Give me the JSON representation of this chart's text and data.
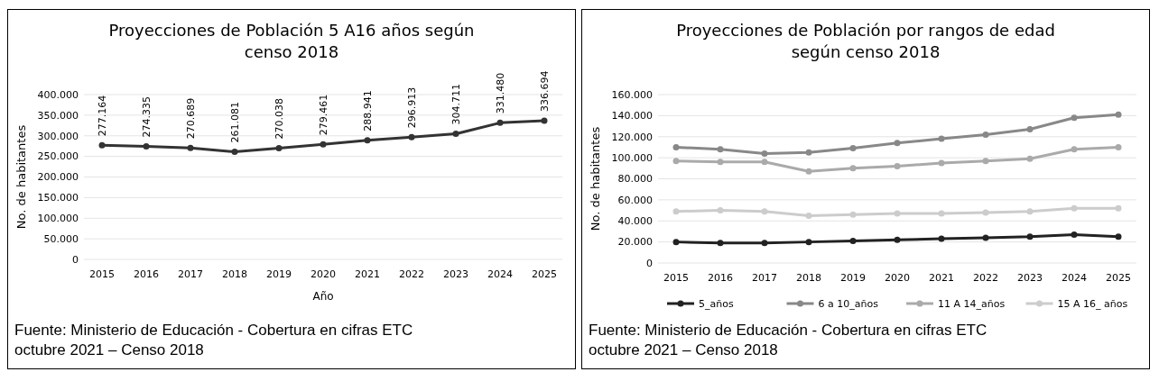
{
  "chart_data": [
    {
      "type": "line",
      "title": "Proyecciones de Población 5 A16 años según censo 2018",
      "xlabel": "Año",
      "ylabel": "No. de habitantes",
      "categories": [
        "2015",
        "2016",
        "2017",
        "2018",
        "2019",
        "2020",
        "2021",
        "2022",
        "2023",
        "2024",
        "2025"
      ],
      "series": [
        {
          "color": "#333333",
          "values": [
            277164,
            274335,
            270689,
            261081,
            270038,
            279461,
            288941,
            296913,
            304711,
            331480,
            336694
          ],
          "value_labels": [
            "277.164",
            "274.335",
            "270.689",
            "261.081",
            "270.038",
            "279.461",
            "288.941",
            "296.913",
            "304.711",
            "331.480",
            "336.694"
          ]
        }
      ],
      "ylim": [
        0,
        400000
      ],
      "yticks": [
        {
          "value": 0,
          "label": "0"
        },
        {
          "value": 50000,
          "label": "50.000"
        },
        {
          "value": 100000,
          "label": "100.000"
        },
        {
          "value": 150000,
          "label": "150.000"
        },
        {
          "value": 200000,
          "label": "200.000"
        },
        {
          "value": 250000,
          "label": "250.000"
        },
        {
          "value": 300000,
          "label": "300.000"
        },
        {
          "value": 350000,
          "label": "350.000"
        },
        {
          "value": 400000,
          "label": "400.000"
        }
      ],
      "grid": "y",
      "marker": "circle",
      "legend": false,
      "annotations": [
        "Fuente: Ministerio de Educación - Cobertura en cifras ETC octubre 2021 – Censo 2018"
      ]
    },
    {
      "type": "line",
      "title": "Proyecciones de Población por rangos de edad según censo 2018",
      "ylabel": "No. de habitantes",
      "categories": [
        "2015",
        "2016",
        "2017",
        "2018",
        "2019",
        "2020",
        "2021",
        "2022",
        "2023",
        "2024",
        "2025"
      ],
      "series": [
        {
          "name": "5_años",
          "color": "#222222",
          "values": [
            20000,
            19000,
            19000,
            20000,
            21000,
            22000,
            23000,
            24000,
            25000,
            27000,
            25000
          ]
        },
        {
          "name": "6 a 10_años",
          "color": "#888888",
          "values": [
            110000,
            108000,
            104000,
            105000,
            109000,
            114000,
            118000,
            122000,
            127000,
            138000,
            141000
          ]
        },
        {
          "name": "11 A 14_años",
          "color": "#aaaaaa",
          "values": [
            97000,
            96000,
            96000,
            87000,
            90000,
            92000,
            95000,
            97000,
            99000,
            108000,
            110000
          ]
        },
        {
          "name": "15 A 16_ años",
          "color": "#cccccc",
          "values": [
            49000,
            50000,
            49000,
            45000,
            46000,
            47000,
            47000,
            48000,
            49000,
            52000,
            52000
          ]
        }
      ],
      "ylim": [
        0,
        160000
      ],
      "yticks": [
        {
          "value": 0,
          "label": "0"
        },
        {
          "value": 20000,
          "label": "20.000"
        },
        {
          "value": 40000,
          "label": "40.000"
        },
        {
          "value": 60000,
          "label": "60.000"
        },
        {
          "value": 80000,
          "label": "80.000"
        },
        {
          "value": 100000,
          "label": "100.000"
        },
        {
          "value": 120000,
          "label": "120.000"
        },
        {
          "value": 140000,
          "label": "140.000"
        },
        {
          "value": 160000,
          "label": "160.000"
        }
      ],
      "grid": "y",
      "marker": "circle",
      "legend": "bottom",
      "annotations": [
        "Fuente: Ministerio de Educación - Cobertura en cifras ETC octubre 2021 – Censo 2018"
      ]
    }
  ]
}
